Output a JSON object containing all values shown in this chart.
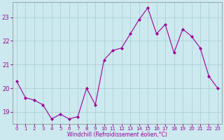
{
  "x": [
    0,
    1,
    2,
    3,
    4,
    5,
    6,
    7,
    8,
    9,
    10,
    11,
    12,
    13,
    14,
    15,
    16,
    17,
    18,
    19,
    20,
    21,
    22,
    23
  ],
  "y": [
    20.3,
    19.6,
    19.5,
    19.3,
    18.7,
    18.9,
    18.7,
    18.8,
    20.0,
    19.3,
    21.2,
    21.6,
    21.7,
    22.3,
    22.9,
    23.4,
    22.3,
    22.7,
    21.5,
    22.5,
    22.2,
    21.7,
    20.5,
    20.0
  ],
  "line_color": "#990099",
  "marker": "D",
  "marker_size": 2,
  "bg_color": "#cce9f0",
  "grid_color": "#aacccc",
  "xlabel": "Windchill (Refroidissement éolien,°C)",
  "xlabel_color": "#990099",
  "tick_color": "#990099",
  "ylim": [
    18.5,
    23.65
  ],
  "yticks": [
    19,
    20,
    21,
    22,
    23
  ],
  "xlim": [
    -0.5,
    23.5
  ]
}
